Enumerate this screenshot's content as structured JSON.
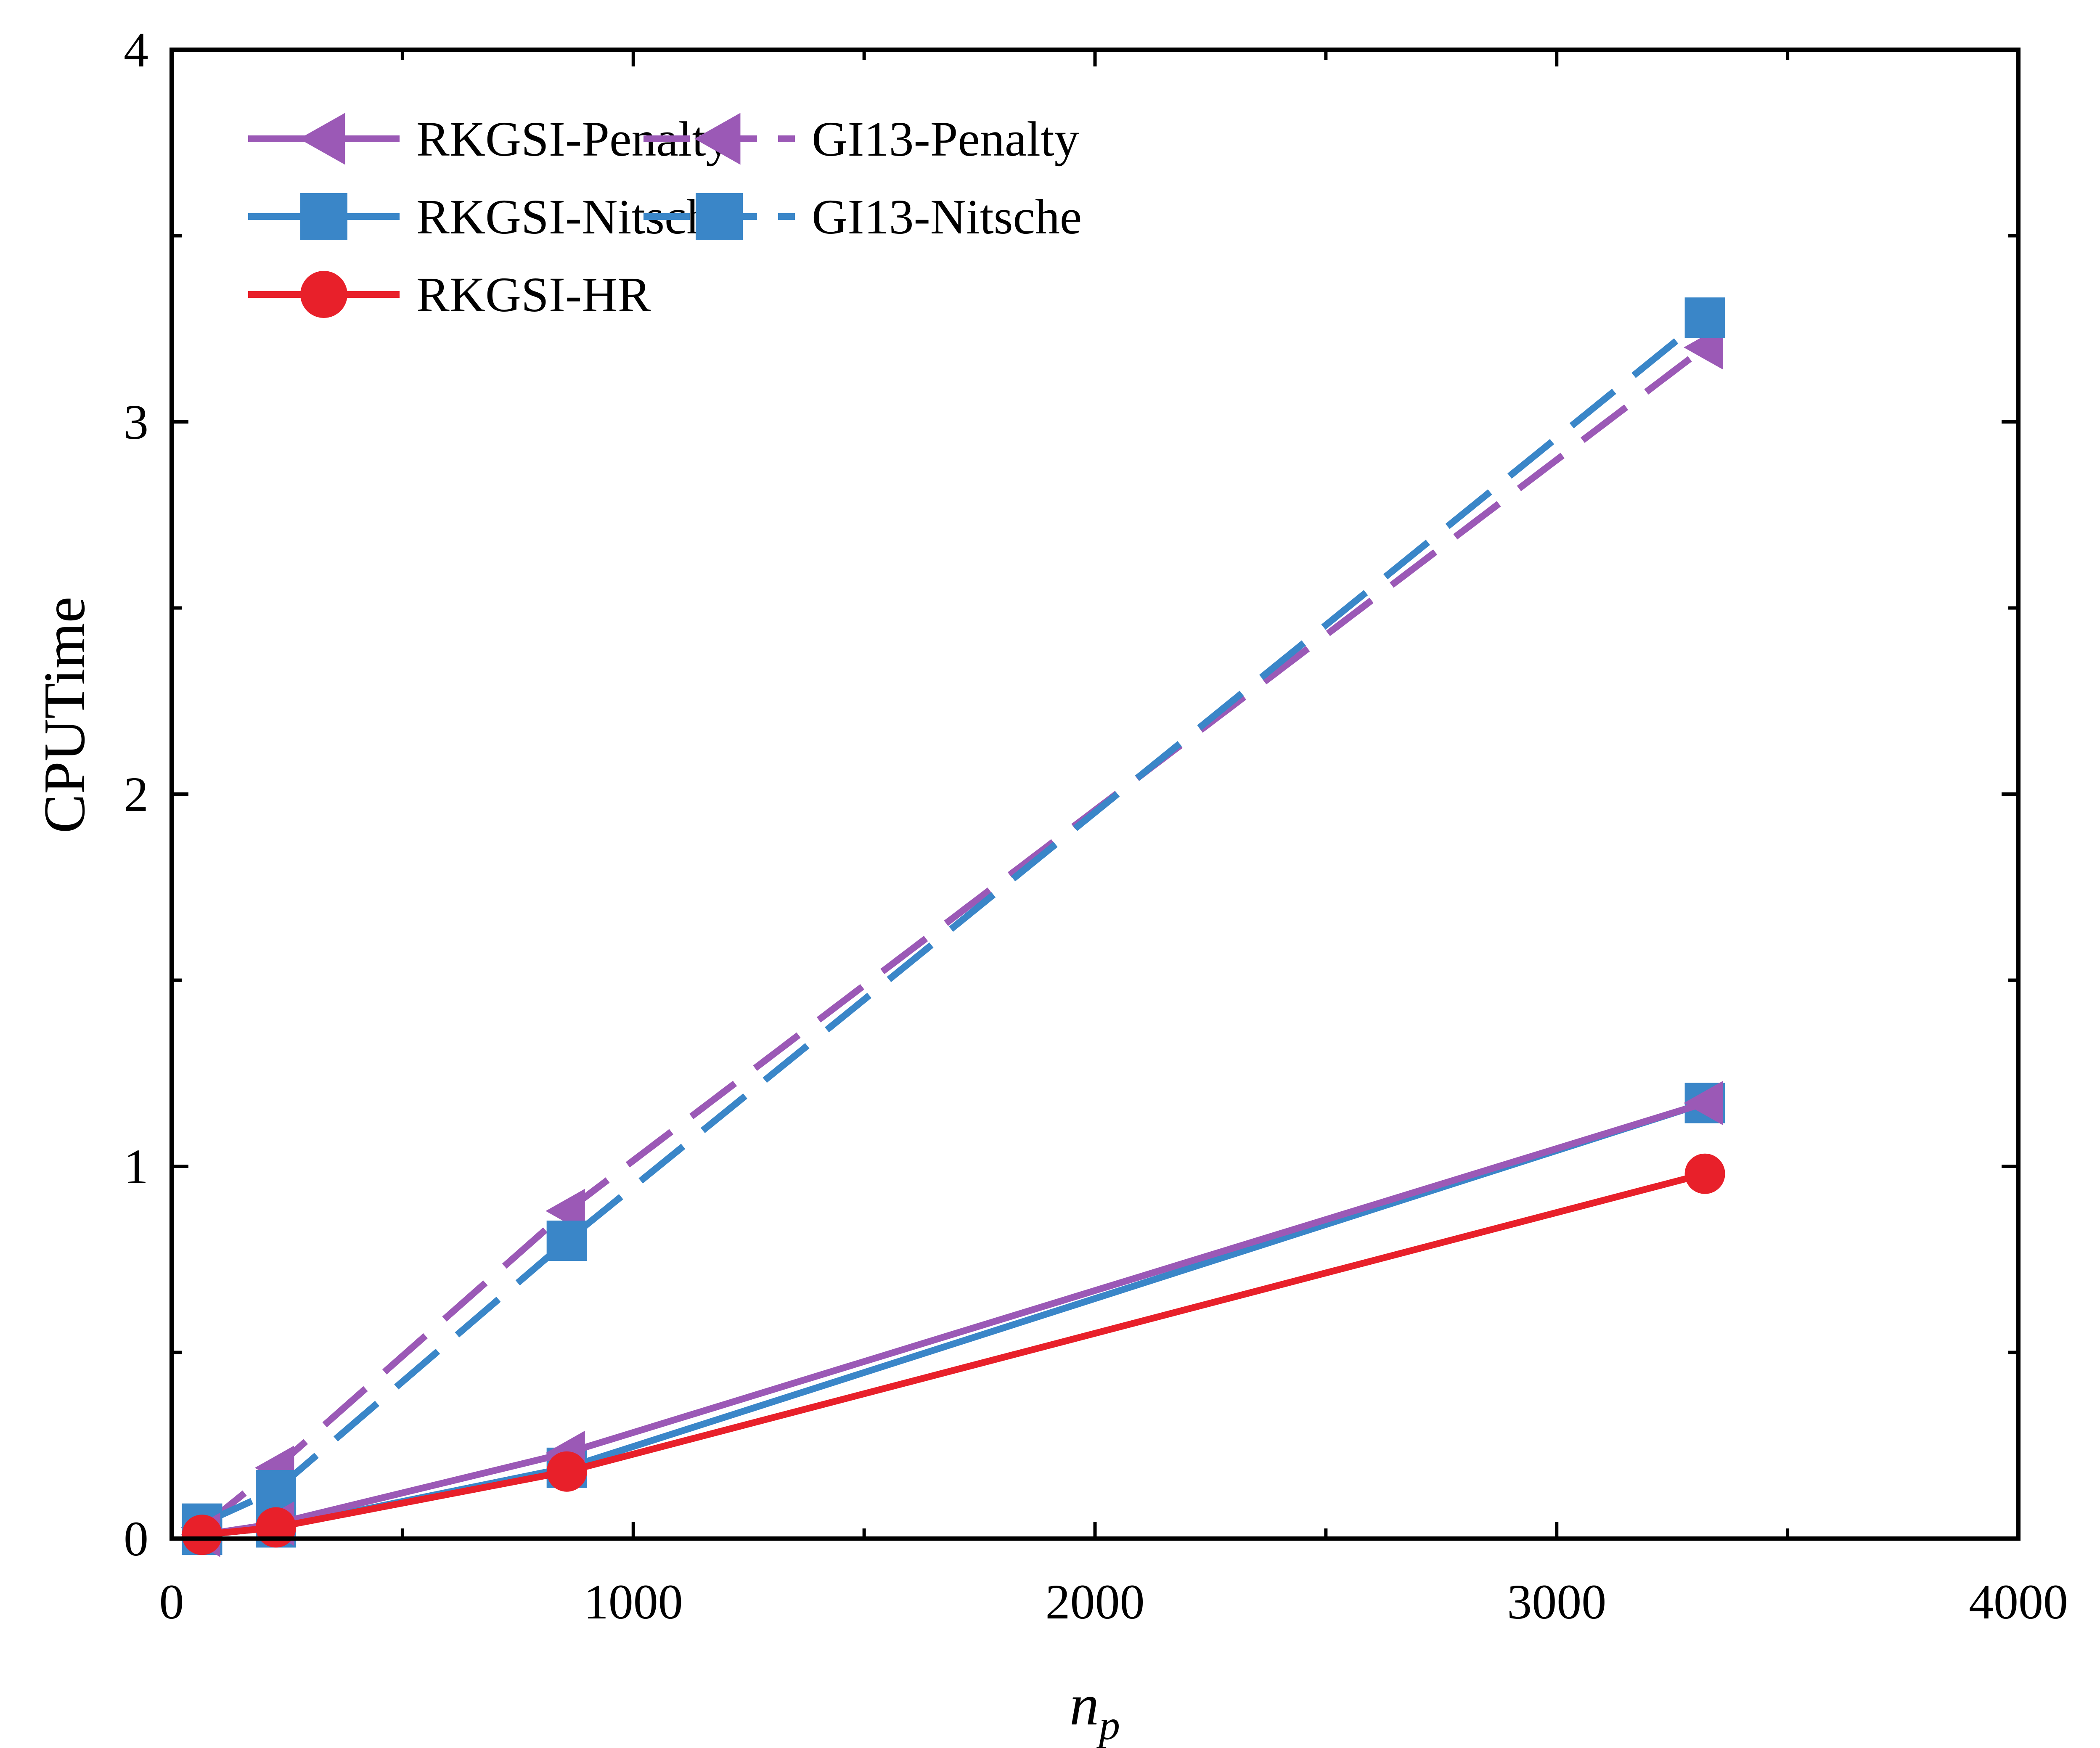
{
  "chart_data": {
    "type": "line",
    "title": "",
    "xlabel": "n",
    "xlabel_subscript": "p",
    "ylabel": "CPUTime",
    "xlim": [
      0,
      4000
    ],
    "ylim": [
      0,
      4
    ],
    "x_ticks": [
      "0",
      "1000",
      "2000",
      "3000",
      "4000"
    ],
    "y_ticks": [
      "0",
      "1",
      "2",
      "3",
      "4"
    ],
    "grid": false,
    "legend_position": "top-left",
    "series": [
      {
        "name": "RKGSI-Penalty",
        "color": "#9b59b6",
        "marker": "triangle-left",
        "dash": "solid",
        "x": [
          66,
          226,
          856,
          3321
        ],
        "y": [
          0.01,
          0.04,
          0.23,
          1.17
        ]
      },
      {
        "name": "RKGSI-Nitsche",
        "color": "#3a86c8",
        "marker": "square",
        "dash": "solid",
        "x": [
          66,
          226,
          856,
          3321
        ],
        "y": [
          0.01,
          0.03,
          0.19,
          1.17
        ]
      },
      {
        "name": "RKGSI-HR",
        "color": "#e8202a",
        "marker": "circle",
        "dash": "solid",
        "x": [
          66,
          226,
          856,
          3321
        ],
        "y": [
          0.01,
          0.03,
          0.18,
          0.98
        ]
      },
      {
        "name": "GI13-Penalty",
        "color": "#9b59b6",
        "marker": "triangle-left",
        "dash": "dashed",
        "x": [
          66,
          226,
          856,
          3321
        ],
        "y": [
          0.03,
          0.19,
          0.88,
          3.2
        ]
      },
      {
        "name": "GI13-Nitsche",
        "color": "#3a86c8",
        "marker": "square",
        "dash": "dashed",
        "x": [
          66,
          226,
          856,
          3321
        ],
        "y": [
          0.04,
          0.13,
          0.8,
          3.28
        ]
      }
    ]
  }
}
